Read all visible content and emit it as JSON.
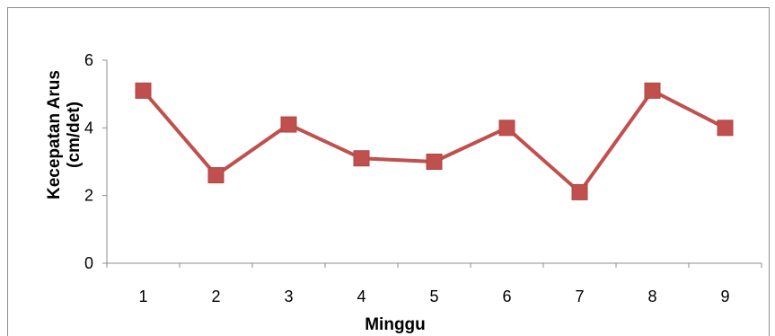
{
  "chart_data": {
    "type": "line",
    "title": "",
    "xlabel": "Minggu",
    "ylabel_line1": "Kecepatan Arus",
    "ylabel_line2": "(cm/det)",
    "categories": [
      "1",
      "2",
      "3",
      "4",
      "5",
      "6",
      "7",
      "8",
      "9"
    ],
    "series": [
      {
        "values": [
          5.1,
          2.6,
          4.1,
          3.1,
          3.0,
          4.0,
          2.1,
          5.1,
          4.0
        ]
      }
    ],
    "ylim": [
      0,
      6
    ],
    "yticks": [
      "0",
      "2",
      "4",
      "6"
    ],
    "grid": false,
    "legend": "none",
    "line_color": "#c0504d",
    "marker_color": "#c0504d",
    "marker_border": "#b04542"
  }
}
